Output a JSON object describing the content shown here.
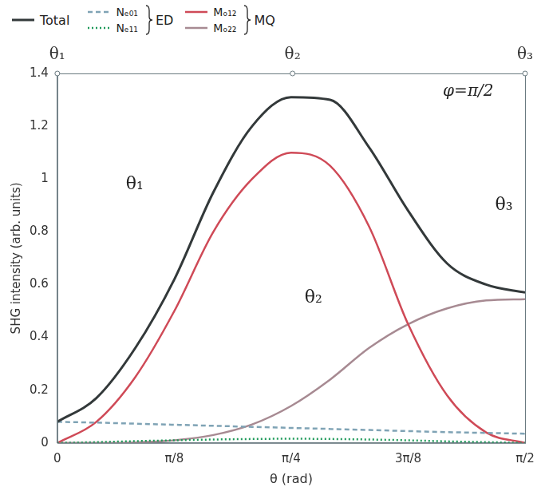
{
  "chart_data": {
    "type": "line",
    "x_label": "θ (rad)",
    "y_label": "SHG intensity (arb. units)",
    "x": [
      0,
      0.131,
      0.262,
      0.393,
      0.524,
      0.654,
      0.785,
      0.916,
      1.047,
      1.178,
      1.309,
      1.44,
      1.571
    ],
    "series": [
      {
        "name": "Total",
        "color": "#33393a",
        "line_style": "solid",
        "values": [
          0.08,
          0.17,
          0.36,
          0.62,
          0.95,
          1.2,
          1.31,
          1.3,
          1.12,
          0.88,
          0.68,
          0.6,
          0.57
        ]
      },
      {
        "name": "Nₑ₀₁",
        "color": "#7fa3b5",
        "line_style": "dashed",
        "values": [
          0.08,
          0.077,
          0.073,
          0.069,
          0.065,
          0.061,
          0.057,
          0.053,
          0.049,
          0.045,
          0.041,
          0.038,
          0.035
        ]
      },
      {
        "name": "Nₑ₁₁",
        "color": "#1f9a5a",
        "line_style": "dotted",
        "values": [
          0,
          0.003,
          0.007,
          0.01,
          0.013,
          0.015,
          0.016,
          0.015,
          0.013,
          0.01,
          0.006,
          0.003,
          0
        ]
      },
      {
        "name": "Mₒ₁₂",
        "color": "#cf4a57",
        "line_style": "solid",
        "values": [
          0,
          0.08,
          0.25,
          0.5,
          0.8,
          1.0,
          1.1,
          1.05,
          0.82,
          0.45,
          0.18,
          0.04,
          0
        ]
      },
      {
        "name": "Mₒ₂₂",
        "color": "#a78a92",
        "line_style": "solid",
        "values": [
          0,
          0,
          0.002,
          0.01,
          0.03,
          0.07,
          0.14,
          0.24,
          0.36,
          0.45,
          0.51,
          0.54,
          0.545
        ]
      }
    ],
    "legend_groups": [
      {
        "label": "ED",
        "series": [
          "Nₑ₀₁",
          "Nₑ₁₁"
        ]
      },
      {
        "label": "MQ",
        "series": [
          "Mₒ₁₂",
          "Mₒ₂₂"
        ]
      }
    ],
    "xlim": [
      0,
      1.5708
    ],
    "xticks": [
      0,
      {
        "value": 0.3927,
        "label": "π/8"
      },
      {
        "value": 0.7854,
        "label": "π/4"
      },
      {
        "value": 1.1781,
        "label": "3π/8"
      },
      {
        "value": 1.5708,
        "label": "π/2"
      }
    ],
    "x2lim": [
      0,
      1.5708
    ],
    "x2ticks": [
      {
        "value": 0,
        "label": "θ₁"
      },
      {
        "value": 0.79,
        "label": "θ₂"
      },
      {
        "value": 1.5708,
        "label": "θ₃"
      }
    ],
    "ylim": [
      0,
      1.4
    ],
    "yticks": [
      0,
      0.2,
      0.4,
      0.6,
      0.8,
      1,
      1.2,
      1.4
    ],
    "annotations": [
      {
        "text": "φ=π/2",
        "x": 1.38,
        "y": 1.33
      },
      {
        "text": "θ₁",
        "x": 0.26,
        "y": 0.98
      },
      {
        "text": "θ₂",
        "x": 0.86,
        "y": 0.55
      },
      {
        "text": "θ₃",
        "x": 1.5,
        "y": 0.9
      }
    ],
    "grid": false,
    "legend": "top"
  }
}
